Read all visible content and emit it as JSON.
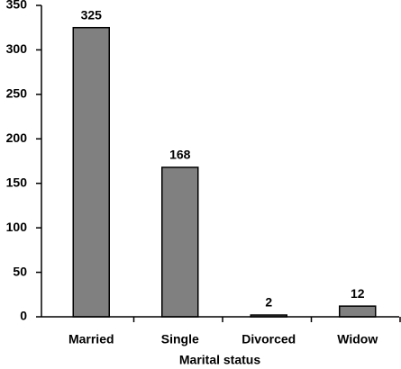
{
  "chart_data": {
    "type": "bar",
    "xlabel": "Marital status",
    "categories": [
      "Married",
      "Single",
      "Divorced",
      "Widow"
    ],
    "values": [
      325,
      168,
      2,
      12
    ],
    "color": "#808080",
    "ylim": [
      0,
      350
    ],
    "yticks": [
      0,
      50,
      100,
      150,
      200,
      250,
      300,
      350
    ],
    "grid": false
  }
}
